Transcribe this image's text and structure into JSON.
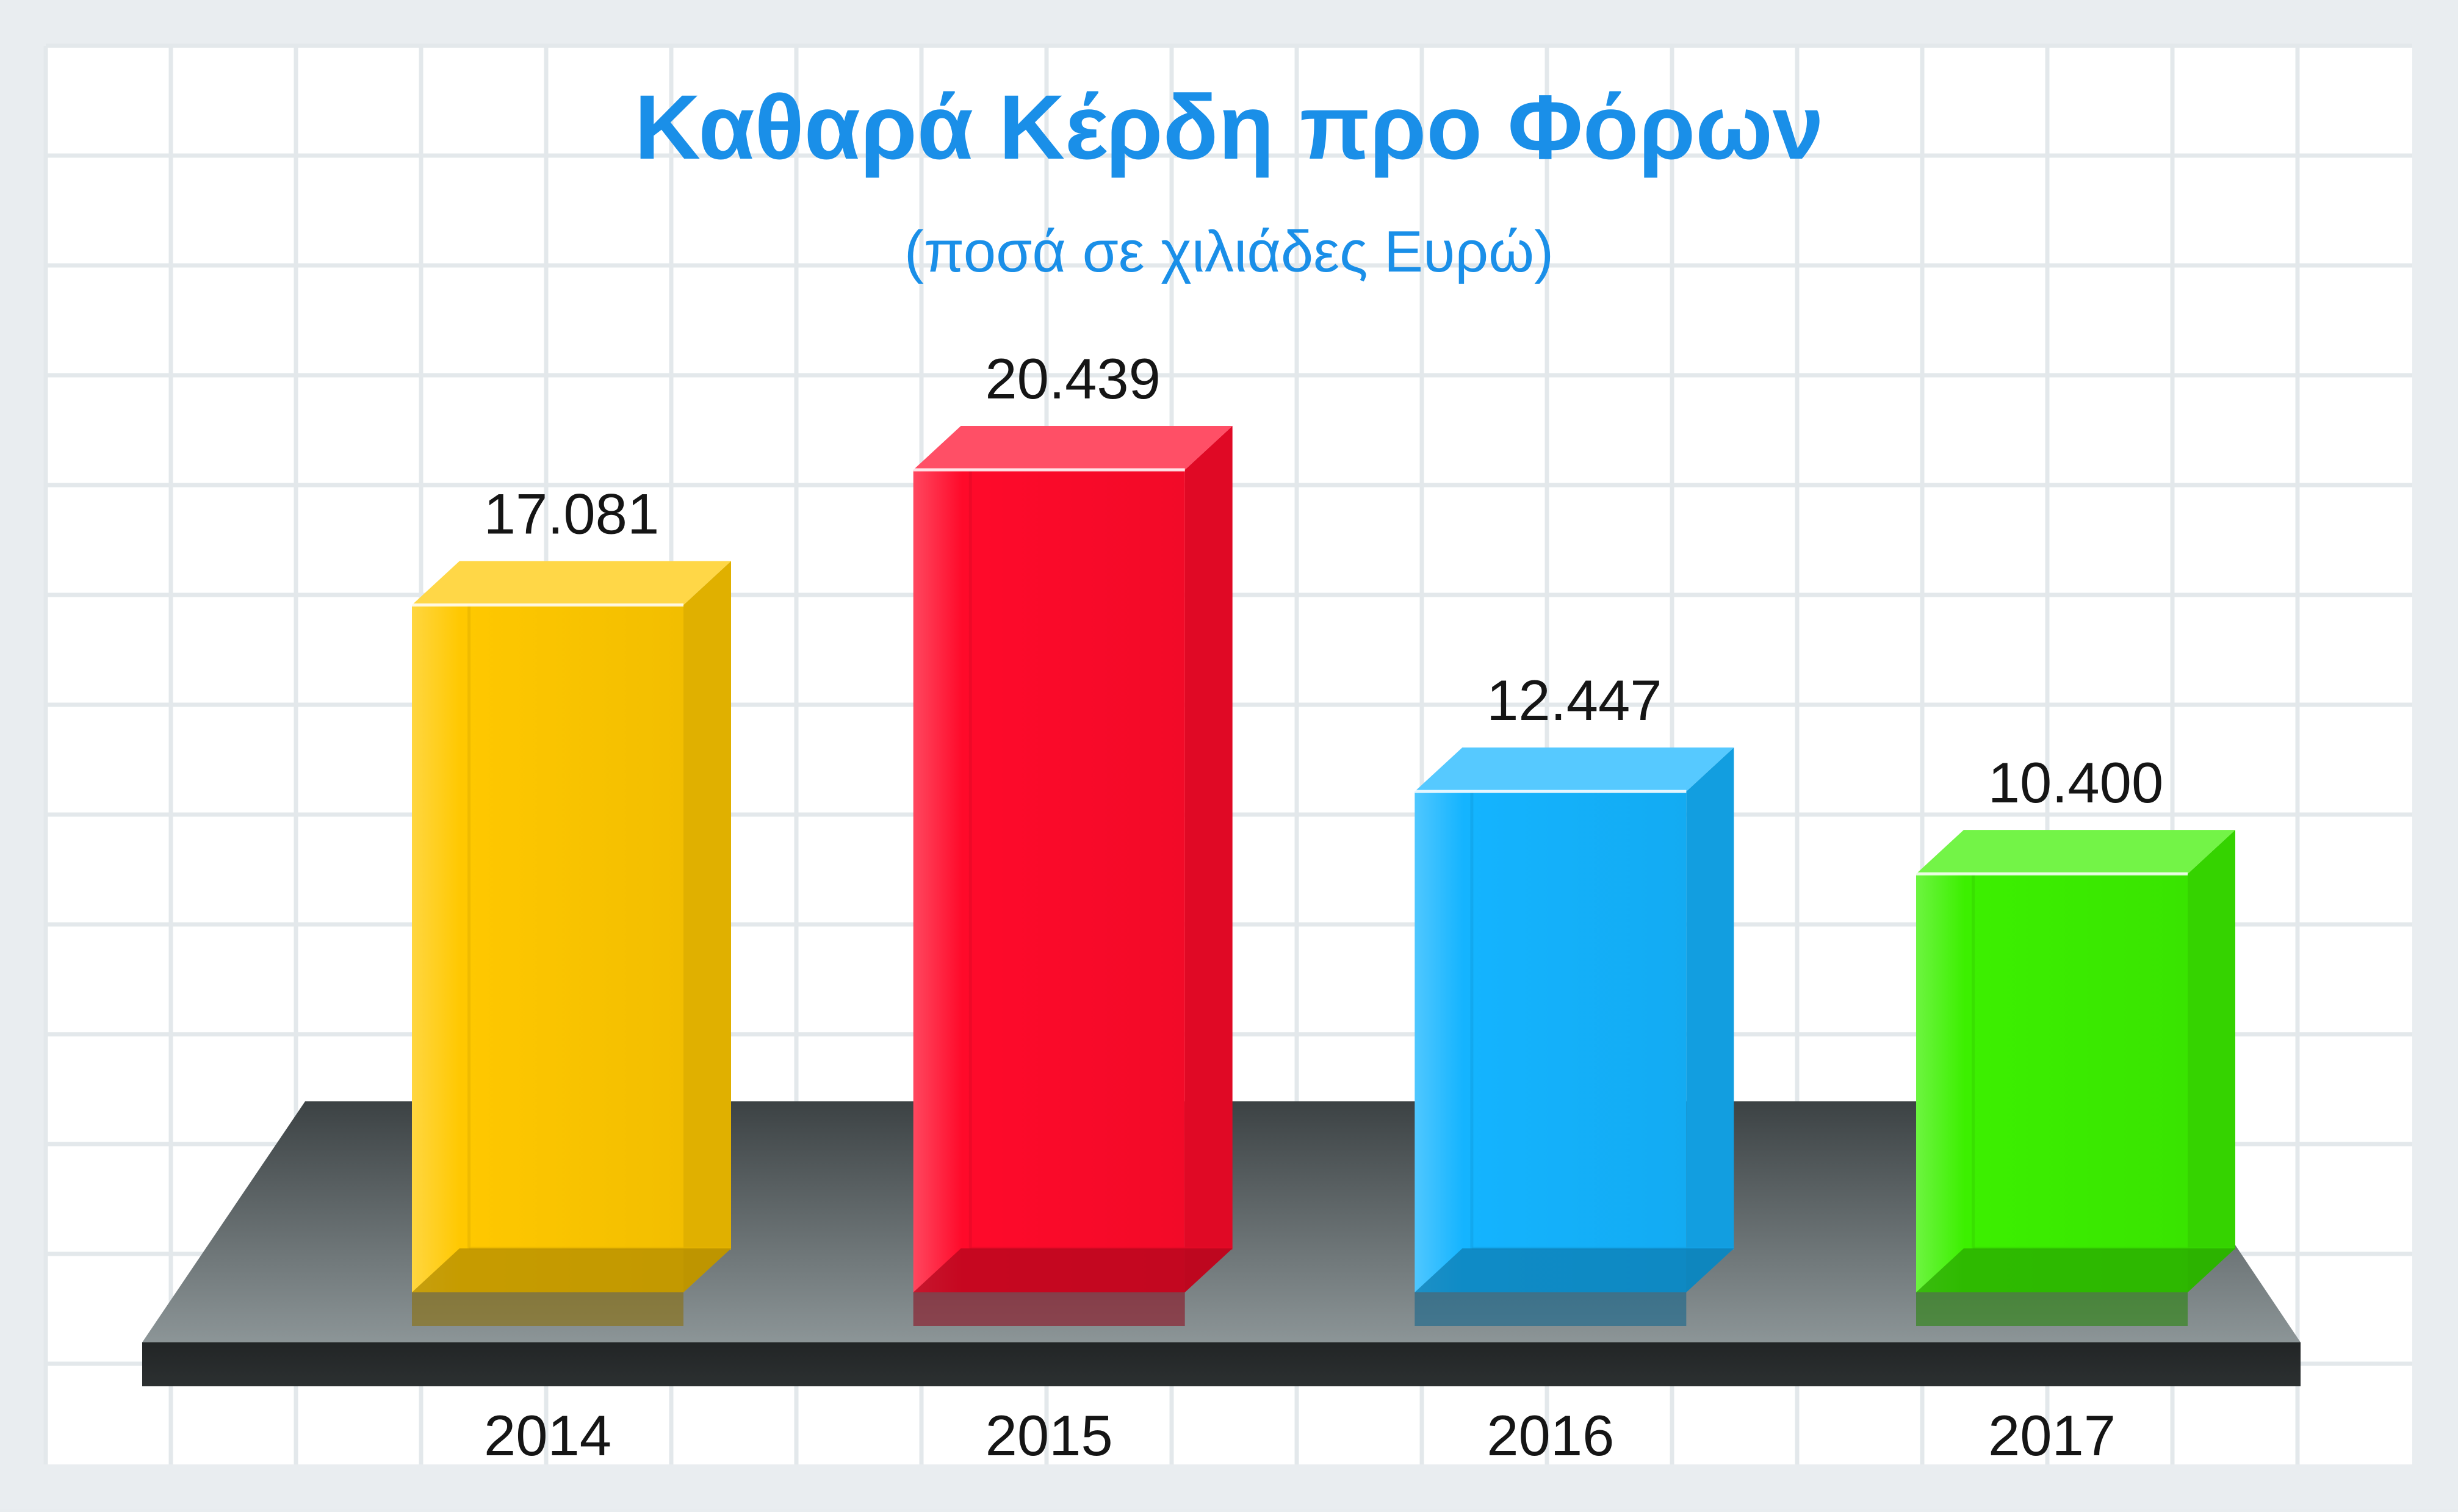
{
  "chart_data": {
    "type": "bar",
    "title": "Καθαρά Κέρδη προ Φόρων",
    "subtitle": "(ποσά σε χιλιάδες Ευρώ)",
    "categories": [
      "2014",
      "2015",
      "2016",
      "2017"
    ],
    "values": [
      17081,
      20439,
      12447,
      10400
    ],
    "value_labels": [
      "17.081",
      "20.439",
      "12.447",
      "10.400"
    ],
    "xlabel": "",
    "ylabel": "",
    "ylim": [
      0,
      22000
    ],
    "grid": true,
    "legend": "none",
    "colors": {
      "title": "#1a8fe8",
      "bars": [
        "#ffc800",
        "#ff0a2a",
        "#14b4ff",
        "#3cf000"
      ],
      "platform": "#4a4f51"
    }
  }
}
